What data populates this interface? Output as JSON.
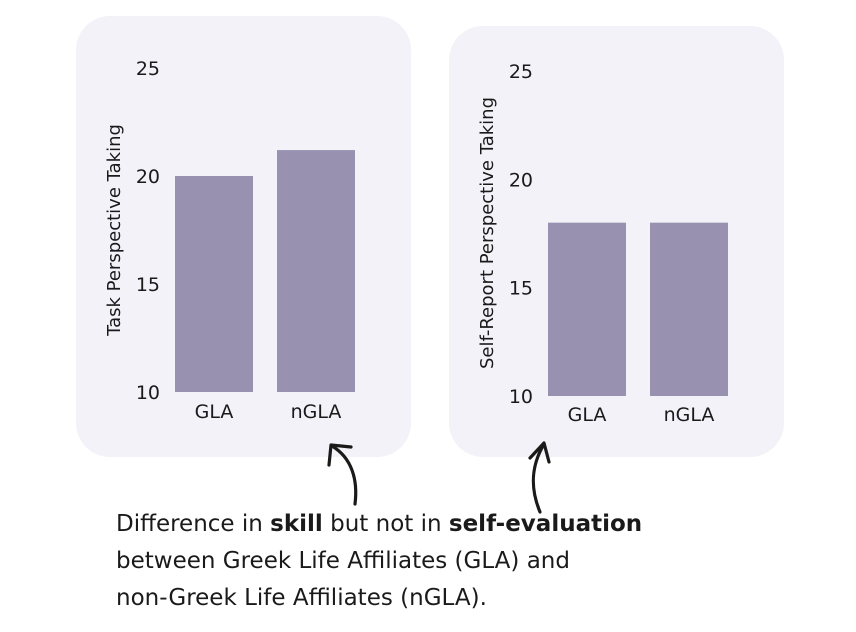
{
  "chart_data": [
    {
      "type": "bar",
      "categories": [
        "GLA",
        "nGLA"
      ],
      "values": [
        20.0,
        21.2
      ],
      "ylabel": "Task Perspective Taking",
      "yticks": [
        10,
        15,
        20,
        25
      ],
      "ylim": [
        10,
        25
      ],
      "grid": false,
      "bar_color": "#9891b0"
    },
    {
      "type": "bar",
      "categories": [
        "GLA",
        "nGLA"
      ],
      "values": [
        18.0,
        18.0
      ],
      "ylabel": "Self-Report Perspective Taking",
      "yticks": [
        10,
        15,
        20,
        25
      ],
      "ylim": [
        10,
        25
      ],
      "grid": false,
      "bar_color": "#9891b0"
    }
  ],
  "caption": {
    "part1": "Difference in ",
    "bold1": "skill",
    "part2": " but not in ",
    "bold2": "self-evaluation",
    "line2": "between Greek Life Affiliates (GLA) and",
    "line3": "non-Greek Life Affiliates (nGLA)."
  },
  "colors": {
    "panel_background": "#f2f2f8",
    "bar": "#9891b0",
    "text": "#1a1a1a"
  }
}
